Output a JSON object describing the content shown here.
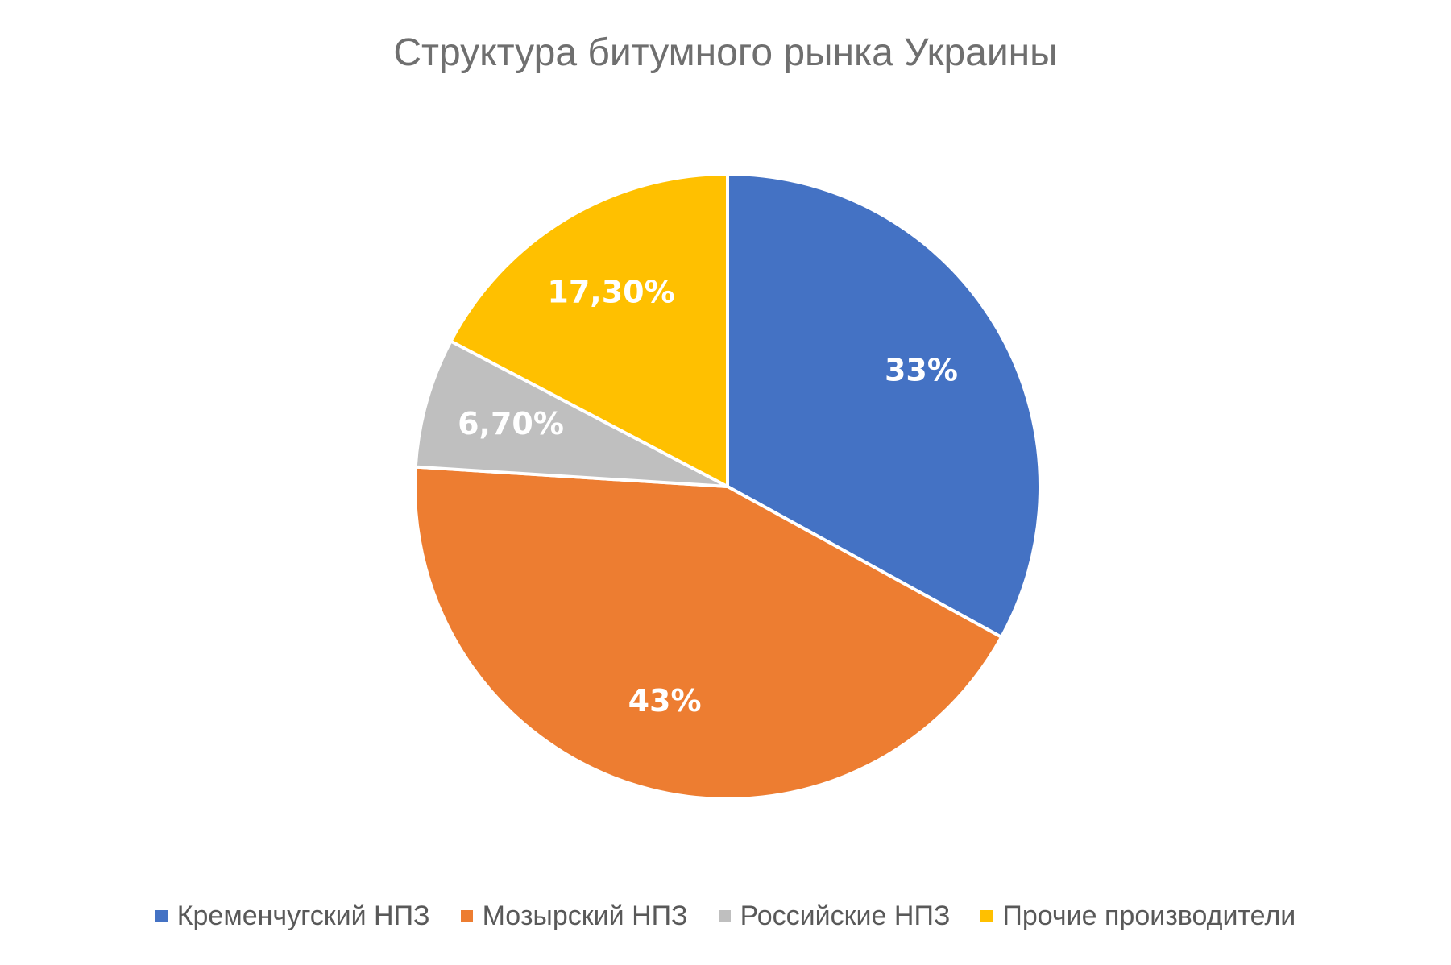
{
  "chart_data": {
    "type": "pie",
    "title": "Структура битумного рынка Украины",
    "slices": [
      {
        "name": "Кременчугский НПЗ",
        "value": 33,
        "label": "33%",
        "color": "#4472C4"
      },
      {
        "name": "Мозырский НПЗ",
        "value": 43,
        "label": "43%",
        "color": "#ED7D31"
      },
      {
        "name": "Российские НПЗ",
        "value": 6.7,
        "label": "6,70%",
        "color": "#BFBFBF"
      },
      {
        "name": "Прочие производители",
        "value": 17.3,
        "label": "17,30%",
        "color": "#FFC000"
      }
    ],
    "start_angle": "12 o'clock",
    "direction": "clockwise",
    "legend_position": "bottom"
  }
}
